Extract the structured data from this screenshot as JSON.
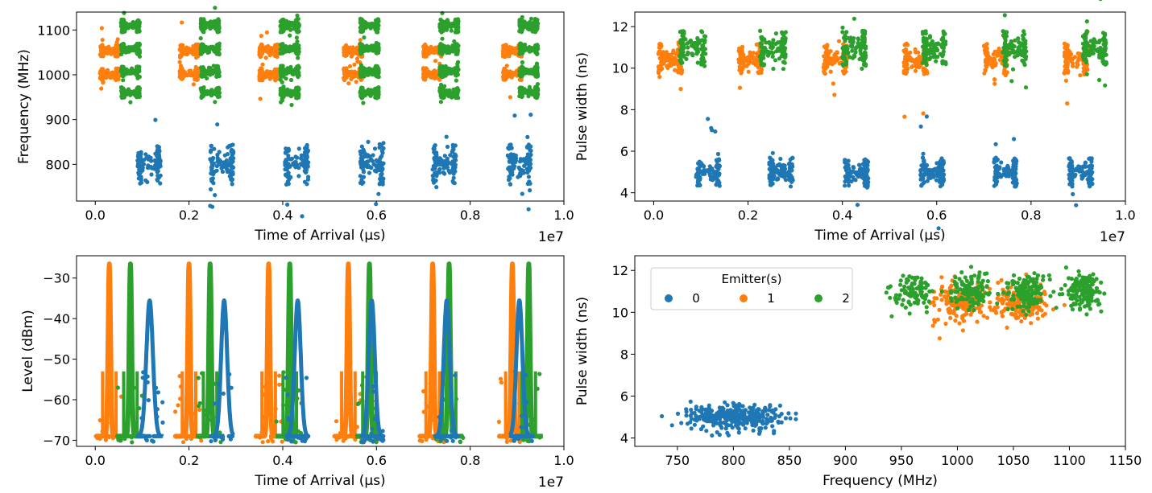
{
  "figure": {
    "legend_title": "Emitter(s)"
  },
  "colors": {
    "0": "#1f77b4",
    "1": "#ff7f0e",
    "2": "#2ca02c"
  },
  "chart_data": [
    {
      "type": "scatter",
      "name": "freq-vs-toa",
      "xlabel": "Time of Arrival (µs)",
      "ylabel": "Frequency (MHz)",
      "x_offset_label": "1e7",
      "xlim": [
        -0.04,
        1.0
      ],
      "ylim": [
        718,
        1140
      ],
      "xticks": [
        0.0,
        0.2,
        0.4,
        0.6,
        0.8,
        1.0
      ],
      "xtick_labels": [
        "0.0",
        "0.2",
        "0.4",
        "0.6",
        "0.8",
        "1.0"
      ],
      "yticks": [
        800,
        900,
        1000,
        1100
      ],
      "ytick_labels": [
        "800",
        "900",
        "1000",
        "1100"
      ],
      "grid": false,
      "x_unit_note": "x in units of 1e7 µs",
      "series": [
        {
          "name": "0",
          "clusters": [
            {
              "x": [
                0.09,
                0.14
              ],
              "y": [
                755,
                845
              ]
            },
            {
              "x": [
                0.245,
                0.295
              ],
              "y": [
                755,
                845
              ]
            },
            {
              "x": [
                0.405,
                0.455
              ],
              "y": [
                755,
                845
              ]
            },
            {
              "x": [
                0.565,
                0.615
              ],
              "y": [
                755,
                845
              ]
            },
            {
              "x": [
                0.72,
                0.77
              ],
              "y": [
                755,
                845
              ]
            },
            {
              "x": [
                0.88,
                0.93
              ],
              "y": [
                755,
                845
              ]
            }
          ]
        },
        {
          "name": "1",
          "clusters": [
            {
              "x": [
                0.01,
                0.05
              ],
              "y": [
                1040,
                1068
              ]
            },
            {
              "x": [
                0.01,
                0.05
              ],
              "y": [
                988,
                1015
              ]
            },
            {
              "x": [
                0.18,
                0.22
              ],
              "y": [
                1040,
                1068
              ]
            },
            {
              "x": [
                0.18,
                0.22
              ],
              "y": [
                988,
                1015
              ]
            },
            {
              "x": [
                0.35,
                0.39
              ],
              "y": [
                1040,
                1068
              ]
            },
            {
              "x": [
                0.35,
                0.39
              ],
              "y": [
                988,
                1015
              ]
            },
            {
              "x": [
                0.53,
                0.57
              ],
              "y": [
                1040,
                1068
              ]
            },
            {
              "x": [
                0.53,
                0.57
              ],
              "y": [
                988,
                1015
              ]
            },
            {
              "x": [
                0.7,
                0.74
              ],
              "y": [
                1040,
                1068
              ]
            },
            {
              "x": [
                0.7,
                0.74
              ],
              "y": [
                988,
                1015
              ]
            },
            {
              "x": [
                0.87,
                0.91
              ],
              "y": [
                1040,
                1068
              ]
            },
            {
              "x": [
                0.87,
                0.91
              ],
              "y": [
                988,
                1015
              ]
            }
          ]
        },
        {
          "name": "2",
          "clusters": [
            {
              "x": [
                0.055,
                0.095
              ],
              "y": [
                1095,
                1125
              ]
            },
            {
              "x": [
                0.055,
                0.095
              ],
              "y": [
                1045,
                1070
              ]
            },
            {
              "x": [
                0.055,
                0.095
              ],
              "y": [
                995,
                1020
              ]
            },
            {
              "x": [
                0.055,
                0.095
              ],
              "y": [
                948,
                972
              ]
            },
            {
              "x": [
                0.225,
                0.265
              ],
              "y": [
                1095,
                1125
              ]
            },
            {
              "x": [
                0.225,
                0.265
              ],
              "y": [
                1045,
                1070
              ]
            },
            {
              "x": [
                0.225,
                0.265
              ],
              "y": [
                995,
                1020
              ]
            },
            {
              "x": [
                0.225,
                0.265
              ],
              "y": [
                948,
                972
              ]
            },
            {
              "x": [
                0.395,
                0.435
              ],
              "y": [
                1095,
                1125
              ]
            },
            {
              "x": [
                0.395,
                0.435
              ],
              "y": [
                1045,
                1070
              ]
            },
            {
              "x": [
                0.395,
                0.435
              ],
              "y": [
                995,
                1020
              ]
            },
            {
              "x": [
                0.395,
                0.435
              ],
              "y": [
                948,
                972
              ]
            },
            {
              "x": [
                0.565,
                0.605
              ],
              "y": [
                1095,
                1125
              ]
            },
            {
              "x": [
                0.565,
                0.605
              ],
              "y": [
                1045,
                1070
              ]
            },
            {
              "x": [
                0.565,
                0.605
              ],
              "y": [
                995,
                1020
              ]
            },
            {
              "x": [
                0.565,
                0.605
              ],
              "y": [
                948,
                972
              ]
            },
            {
              "x": [
                0.735,
                0.775
              ],
              "y": [
                1095,
                1125
              ]
            },
            {
              "x": [
                0.735,
                0.775
              ],
              "y": [
                1045,
                1070
              ]
            },
            {
              "x": [
                0.735,
                0.775
              ],
              "y": [
                995,
                1020
              ]
            },
            {
              "x": [
                0.735,
                0.775
              ],
              "y": [
                948,
                972
              ]
            },
            {
              "x": [
                0.905,
                0.945
              ],
              "y": [
                1095,
                1125
              ]
            },
            {
              "x": [
                0.905,
                0.945
              ],
              "y": [
                1045,
                1070
              ]
            },
            {
              "x": [
                0.905,
                0.945
              ],
              "y": [
                995,
                1020
              ]
            },
            {
              "x": [
                0.905,
                0.945
              ],
              "y": [
                948,
                972
              ]
            }
          ]
        }
      ]
    },
    {
      "type": "scatter",
      "name": "pw-vs-toa",
      "xlabel": "Time of Arrival (µs)",
      "ylabel": "Pulse width (ns)",
      "x_offset_label": "1e7",
      "xlim": [
        -0.04,
        1.0
      ],
      "ylim": [
        3.6,
        12.7
      ],
      "xticks": [
        0.0,
        0.2,
        0.4,
        0.6,
        0.8,
        1.0
      ],
      "xtick_labels": [
        "0.0",
        "0.2",
        "0.4",
        "0.6",
        "0.8",
        "1.0"
      ],
      "yticks": [
        4,
        6,
        8,
        10,
        12
      ],
      "ytick_labels": [
        "4",
        "6",
        "8",
        "10",
        "12"
      ],
      "grid": false,
      "series": [
        {
          "name": "0",
          "clusters": [
            {
              "x": [
                0.09,
                0.14
              ],
              "y": [
                4.3,
                5.7
              ]
            },
            {
              "x": [
                0.245,
                0.295
              ],
              "y": [
                4.3,
                5.7
              ]
            },
            {
              "x": [
                0.405,
                0.455
              ],
              "y": [
                4.3,
                5.7
              ]
            },
            {
              "x": [
                0.565,
                0.615
              ],
              "y": [
                4.3,
                5.7
              ]
            },
            {
              "x": [
                0.72,
                0.77
              ],
              "y": [
                4.3,
                5.7
              ]
            },
            {
              "x": [
                0.88,
                0.93
              ],
              "y": [
                4.3,
                5.7
              ]
            }
          ]
        },
        {
          "name": "1",
          "clusters": [
            {
              "x": [
                0.01,
                0.06
              ],
              "y": [
                9.7,
                11.2
              ]
            },
            {
              "x": [
                0.18,
                0.23
              ],
              "y": [
                9.7,
                11.2
              ]
            },
            {
              "x": [
                0.36,
                0.41
              ],
              "y": [
                9.7,
                11.2
              ]
            },
            {
              "x": [
                0.53,
                0.58
              ],
              "y": [
                9.7,
                11.2
              ]
            },
            {
              "x": [
                0.7,
                0.75
              ],
              "y": [
                9.7,
                11.2
              ]
            },
            {
              "x": [
                0.87,
                0.92
              ],
              "y": [
                9.7,
                11.2
              ]
            }
          ]
        },
        {
          "name": "2",
          "clusters": [
            {
              "x": [
                0.055,
                0.11
              ],
              "y": [
                10.1,
                11.8
              ]
            },
            {
              "x": [
                0.225,
                0.28
              ],
              "y": [
                10.1,
                11.8
              ]
            },
            {
              "x": [
                0.4,
                0.45
              ],
              "y": [
                10.1,
                11.8
              ]
            },
            {
              "x": [
                0.57,
                0.62
              ],
              "y": [
                10.1,
                11.8
              ]
            },
            {
              "x": [
                0.74,
                0.79
              ],
              "y": [
                10.1,
                11.8
              ]
            },
            {
              "x": [
                0.91,
                0.96
              ],
              "y": [
                10.1,
                11.8
              ]
            }
          ]
        }
      ]
    },
    {
      "type": "line",
      "name": "level-vs-toa",
      "xlabel": "Time of Arrival (µs)",
      "ylabel": "Level (dBm)",
      "x_offset_label": "1e7",
      "xlim": [
        -0.04,
        1.0
      ],
      "ylim": [
        -71.5,
        -24.5
      ],
      "xticks": [
        0.0,
        0.2,
        0.4,
        0.6,
        0.8,
        1.0
      ],
      "xtick_labels": [
        "0.0",
        "0.2",
        "0.4",
        "0.6",
        "0.8",
        "1.0"
      ],
      "yticks": [
        -70,
        -60,
        -50,
        -40,
        -30
      ],
      "ytick_labels": [
        "−70",
        "−60",
        "−50",
        "−40",
        "−30"
      ],
      "grid": false,
      "baseline": -69,
      "series": [
        {
          "name": "0",
          "bursts": [
            {
              "x0": 0.09,
              "x1": 0.145,
              "peak": -35.5,
              "peak_at": 0.116
            },
            {
              "x0": 0.245,
              "x1": 0.295,
              "peak": -35.5,
              "peak_at": 0.275
            },
            {
              "x0": 0.405,
              "x1": 0.455,
              "peak": -35.5,
              "peak_at": 0.432
            },
            {
              "x0": 0.565,
              "x1": 0.615,
              "peak": -35.5,
              "peak_at": 0.59
            },
            {
              "x0": 0.725,
              "x1": 0.775,
              "peak": -35.5,
              "peak_at": 0.75
            },
            {
              "x0": 0.885,
              "x1": 0.935,
              "peak": -35.5,
              "peak_at": 0.905
            }
          ]
        },
        {
          "name": "1",
          "bursts": [
            {
              "x0": 0.0,
              "x1": 0.06,
              "peak": -26.5,
              "peak_at": 0.03
            },
            {
              "x0": 0.17,
              "x1": 0.23,
              "peak": -26.5,
              "peak_at": 0.2
            },
            {
              "x0": 0.34,
              "x1": 0.4,
              "peak": -26.5,
              "peak_at": 0.37
            },
            {
              "x0": 0.51,
              "x1": 0.57,
              "peak": -26.5,
              "peak_at": 0.54
            },
            {
              "x0": 0.69,
              "x1": 0.75,
              "peak": -26.5,
              "peak_at": 0.72
            },
            {
              "x0": 0.86,
              "x1": 0.92,
              "peak": -26.5,
              "peak_at": 0.89
            }
          ]
        },
        {
          "name": "2",
          "bursts": [
            {
              "x0": 0.045,
              "x1": 0.105,
              "peak": -26.5,
              "peak_at": 0.075
            },
            {
              "x0": 0.215,
              "x1": 0.275,
              "peak": -26.5,
              "peak_at": 0.245
            },
            {
              "x0": 0.385,
              "x1": 0.445,
              "peak": -26.5,
              "peak_at": 0.415
            },
            {
              "x0": 0.555,
              "x1": 0.615,
              "peak": -26.5,
              "peak_at": 0.585
            },
            {
              "x0": 0.725,
              "x1": 0.785,
              "peak": -26.5,
              "peak_at": 0.755
            },
            {
              "x0": 0.895,
              "x1": 0.955,
              "peak": -26.5,
              "peak_at": 0.925
            }
          ]
        }
      ]
    },
    {
      "type": "scatter",
      "name": "pw-vs-freq",
      "xlabel": "Frequency (MHz)",
      "ylabel": "Pulse width (ns)",
      "xlim": [
        712,
        1150
      ],
      "ylim": [
        3.6,
        12.7
      ],
      "xticks": [
        750,
        800,
        850,
        900,
        950,
        1000,
        1050,
        1100,
        1150
      ],
      "xtick_labels": [
        "750",
        "800",
        "850",
        "900",
        "950",
        "1000",
        "1050",
        "1100",
        "1150"
      ],
      "yticks": [
        4,
        6,
        8,
        10,
        12
      ],
      "ytick_labels": [
        "4",
        "6",
        "8",
        "10",
        "12"
      ],
      "grid": false,
      "legend": {
        "title": "Emitter(s)",
        "placement": "upper-left",
        "ncol": 3,
        "entries": [
          "0",
          "1",
          "2"
        ]
      },
      "series": [
        {
          "name": "0",
          "blobs": [
            {
              "cx": 800,
              "cy": 5.0,
              "sx": 22,
              "sy": 0.3,
              "n": 700
            }
          ]
        },
        {
          "name": "1",
          "blobs": [
            {
              "cx": 1003,
              "cy": 10.4,
              "sx": 12,
              "sy": 0.45,
              "n": 350
            },
            {
              "cx": 1055,
              "cy": 10.4,
              "sx": 12,
              "sy": 0.45,
              "n": 350
            }
          ]
        },
        {
          "name": "2",
          "blobs": [
            {
              "cx": 960,
              "cy": 11.0,
              "sx": 9,
              "sy": 0.4,
              "n": 200
            },
            {
              "cx": 1012,
              "cy": 11.0,
              "sx": 9,
              "sy": 0.4,
              "n": 250
            },
            {
              "cx": 1062,
              "cy": 11.0,
              "sx": 9,
              "sy": 0.4,
              "n": 250
            },
            {
              "cx": 1112,
              "cy": 11.0,
              "sx": 9,
              "sy": 0.4,
              "n": 300
            }
          ]
        }
      ]
    }
  ]
}
